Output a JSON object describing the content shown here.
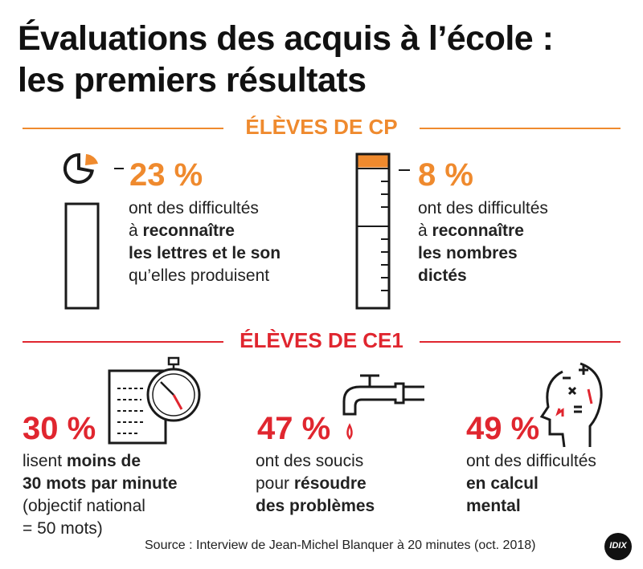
{
  "colors": {
    "orange": "#ef8a2e",
    "red": "#e0262f",
    "text": "#1a1a1a",
    "gray": "#555555"
  },
  "title": {
    "line1": "Évaluations des acquis à l’école :",
    "line2": "les premiers résultats"
  },
  "cp": {
    "heading": "ÉLÈVES DE CP",
    "left": {
      "percent": "23 %",
      "l1": "ont des difficultés",
      "l2a": "à ",
      "l2b": "reconnaître",
      "l3": "les lettres et le son",
      "l4": "qu’elles produisent",
      "level": 0.23
    },
    "right": {
      "percent": "8 %",
      "l1": "ont des difficultés",
      "l2a": "à ",
      "l2b": "reconnaître",
      "l3": "les nombres",
      "l4": "dictés",
      "level": 0.08
    }
  },
  "ce1": {
    "heading": "ÉLÈVES DE CE1",
    "a": {
      "percent": "30 %",
      "l1a": "lisent ",
      "l1b": "moins de",
      "l2": "30 mots par minute",
      "l3": "(objectif national",
      "l4": "= 50 mots)"
    },
    "b": {
      "percent": "47 %",
      "l1": "ont des soucis",
      "l2a": "pour ",
      "l2b": "résoudre",
      "l3": "des problèmes"
    },
    "c": {
      "percent": "49 %",
      "l1": "ont des difficultés",
      "l2": "en calcul",
      "l3": "mental"
    }
  },
  "source": "Source : Interview de Jean-Michel Blanquer à 20 minutes (oct. 2018)",
  "logo": "IDIX",
  "icons": [
    "pie-icon",
    "gauge-icon",
    "document-stopwatch-icon",
    "faucet-icon",
    "head-math-icon"
  ]
}
